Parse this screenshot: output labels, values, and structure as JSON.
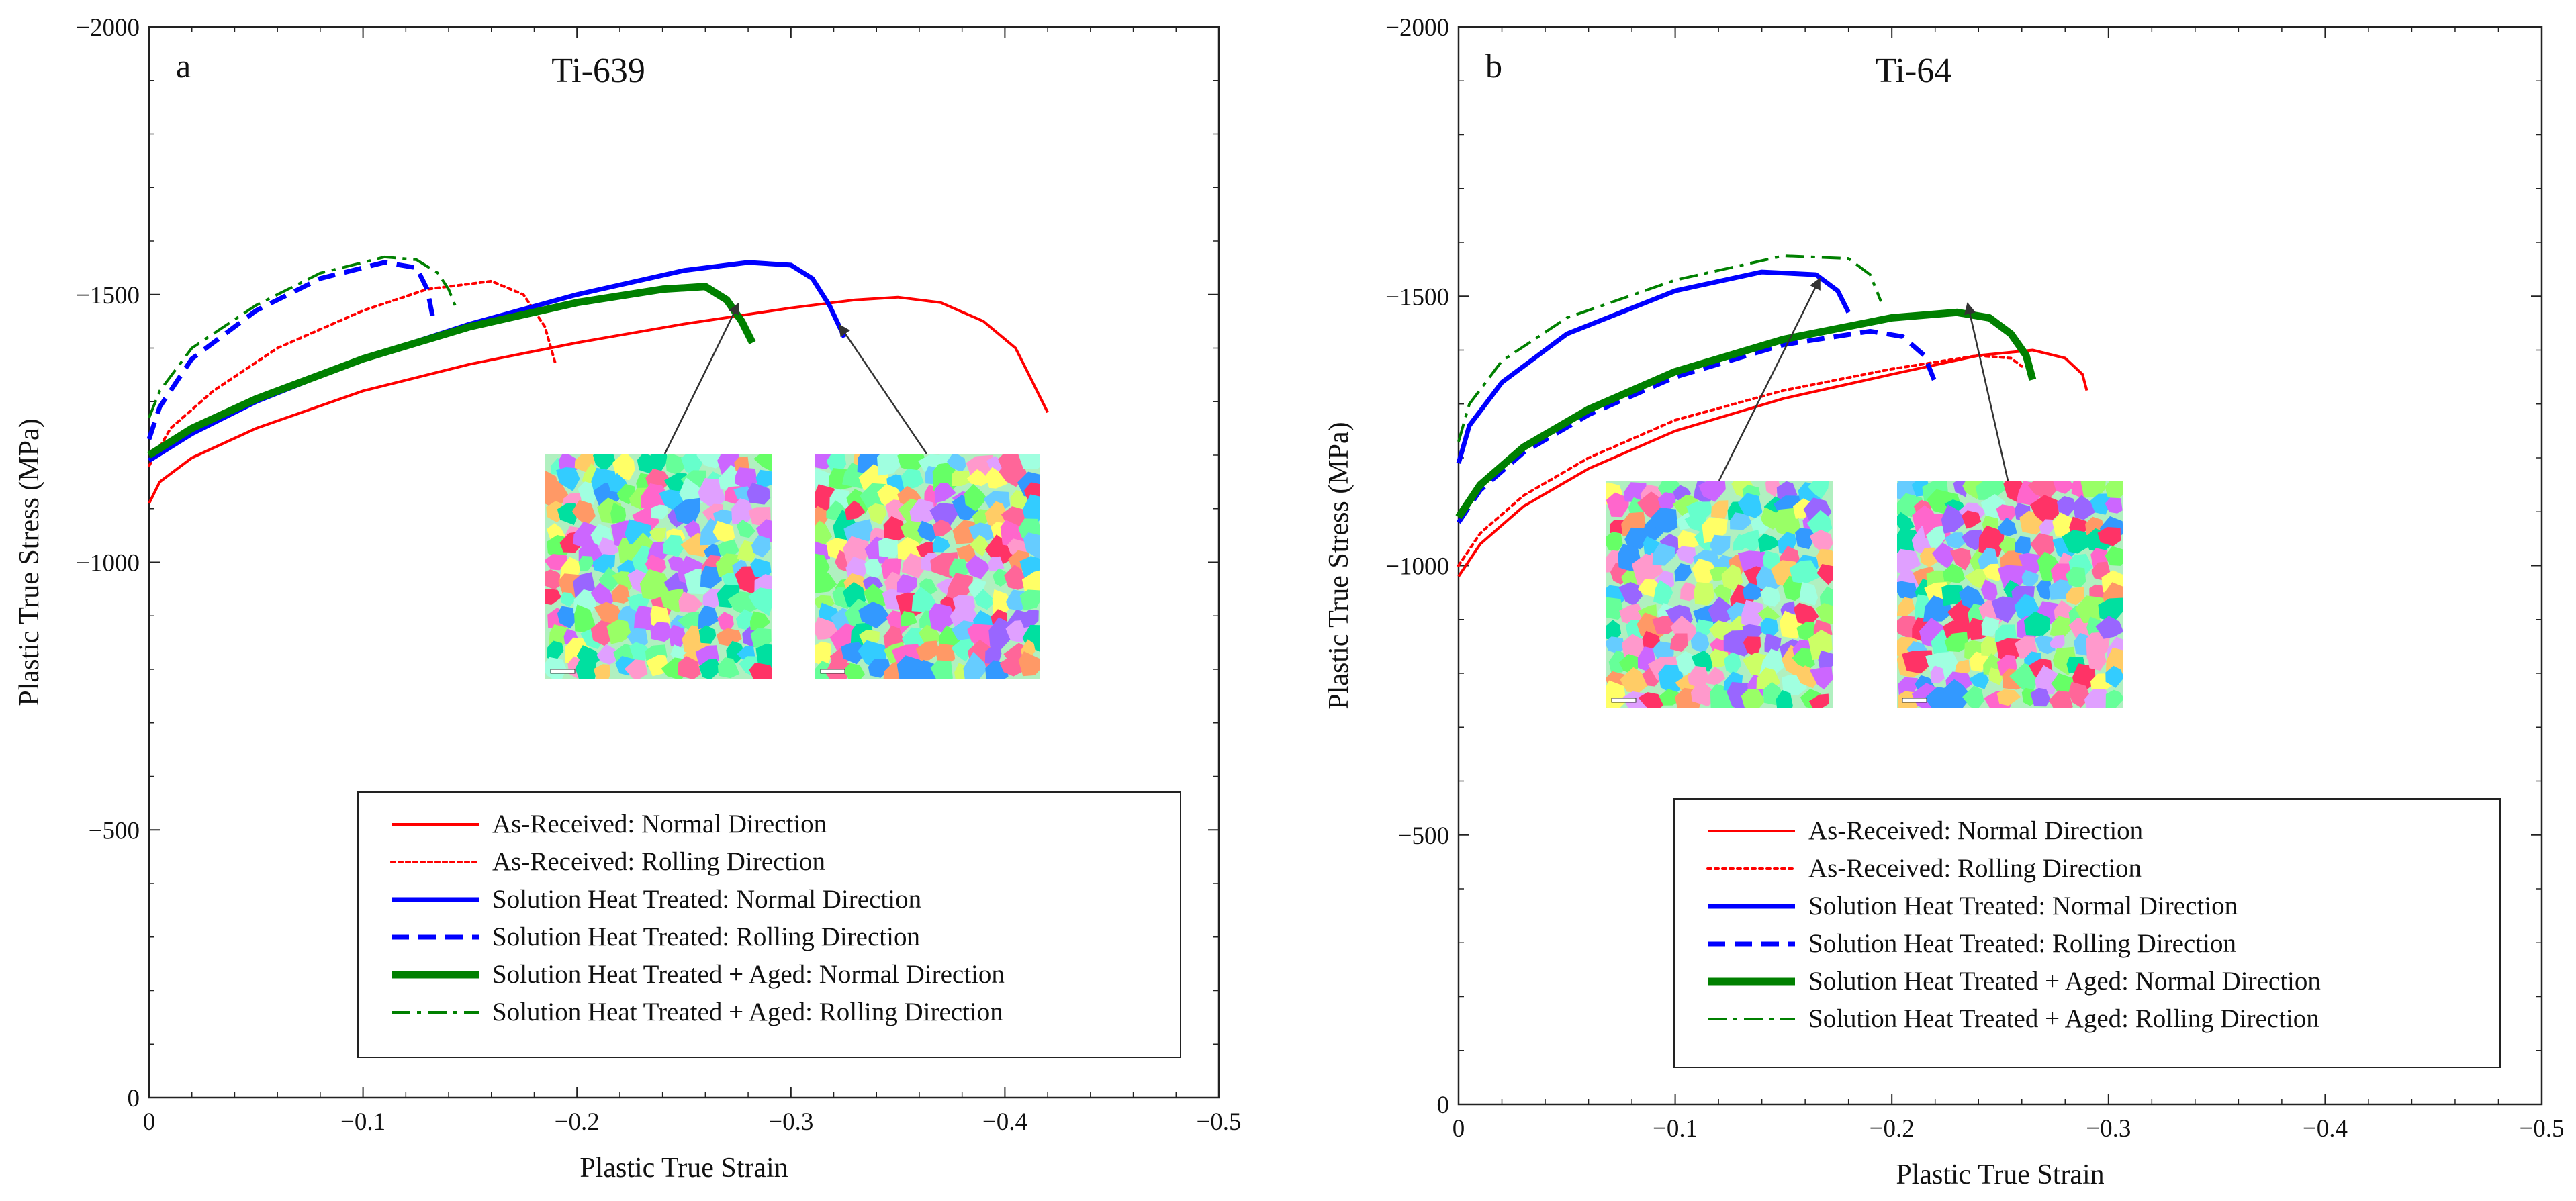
{
  "chart_data": [
    {
      "type": "line",
      "panel_label": "a",
      "title": "Ti-639",
      "xlabel": "Plastic True Strain",
      "ylabel": "Plastic True Stress (MPa)",
      "xlim": [
        0,
        -0.5
      ],
      "ylim": [
        0,
        -2000
      ],
      "x_ticks": [
        0,
        -0.1,
        -0.2,
        -0.3,
        -0.4,
        -0.5
      ],
      "x_tick_labels": [
        "0",
        "−0.1",
        "−0.2",
        "−0.3",
        "−0.4",
        "−0.5"
      ],
      "y_ticks": [
        0,
        -500,
        -1000,
        -1500,
        -2000
      ],
      "y_tick_labels": [
        "0",
        "−500",
        "−1000",
        "−1500",
        "−2000"
      ],
      "grid": false,
      "legend_position": "bottom-right",
      "series": [
        {
          "name": "As-Received: Normal Direction",
          "color": "#ff0000",
          "style": "solid",
          "width": "thin",
          "x": [
            0,
            -0.005,
            -0.02,
            -0.05,
            -0.1,
            -0.15,
            -0.2,
            -0.25,
            -0.3,
            -0.33,
            -0.35,
            -0.37,
            -0.39,
            -0.405,
            -0.41,
            -0.42
          ],
          "y": [
            -1110,
            -1150,
            -1195,
            -1250,
            -1320,
            -1370,
            -1410,
            -1445,
            -1475,
            -1490,
            -1495,
            -1485,
            -1450,
            -1400,
            -1360,
            -1280
          ]
        },
        {
          "name": "As-Received: Rolling Direction",
          "color": "#ff0000",
          "style": "dotted",
          "width": "thin",
          "x": [
            0,
            -0.01,
            -0.03,
            -0.06,
            -0.1,
            -0.13,
            -0.16,
            -0.175,
            -0.185,
            -0.19
          ],
          "y": [
            -1180,
            -1250,
            -1320,
            -1400,
            -1470,
            -1510,
            -1525,
            -1500,
            -1440,
            -1370
          ]
        },
        {
          "name": "Solution Heat Treated: Normal Direction",
          "color": "#0000ff",
          "style": "solid",
          "width": "medium",
          "x": [
            0,
            -0.02,
            -0.05,
            -0.1,
            -0.15,
            -0.2,
            -0.25,
            -0.28,
            -0.3,
            -0.31,
            -0.318,
            -0.325
          ],
          "y": [
            -1190,
            -1240,
            -1300,
            -1380,
            -1445,
            -1500,
            -1545,
            -1560,
            -1555,
            -1530,
            -1480,
            -1420
          ]
        },
        {
          "name": "Solution Heat Treated: Rolling Direction",
          "color": "#0000ff",
          "style": "dashed",
          "width": "medium",
          "x": [
            0,
            -0.005,
            -0.02,
            -0.05,
            -0.08,
            -0.11,
            -0.125,
            -0.13,
            -0.133
          ],
          "y": [
            -1230,
            -1290,
            -1380,
            -1470,
            -1530,
            -1560,
            -1550,
            -1510,
            -1450
          ]
        },
        {
          "name": "Solution Heat Treated + Aged: Normal Direction",
          "color": "#008000",
          "style": "solid",
          "width": "thick",
          "x": [
            0,
            -0.02,
            -0.05,
            -0.1,
            -0.15,
            -0.2,
            -0.24,
            -0.26,
            -0.27,
            -0.277,
            -0.282
          ],
          "y": [
            -1200,
            -1250,
            -1305,
            -1380,
            -1440,
            -1485,
            -1510,
            -1515,
            -1490,
            -1450,
            -1410
          ]
        },
        {
          "name": "Solution Heat Treated + Aged: Rolling Direction",
          "color": "#008000",
          "style": "dashdot",
          "width": "thin",
          "x": [
            0,
            -0.005,
            -0.02,
            -0.05,
            -0.08,
            -0.11,
            -0.125,
            -0.135,
            -0.14,
            -0.143
          ],
          "y": [
            -1270,
            -1320,
            -1400,
            -1480,
            -1540,
            -1570,
            -1565,
            -1540,
            -1510,
            -1480
          ]
        }
      ]
    },
    {
      "type": "line",
      "panel_label": "b",
      "title": "Ti-64",
      "xlabel": "Plastic True Strain",
      "ylabel": "Plastic True Stress (MPa)",
      "xlim": [
        0,
        -0.5
      ],
      "ylim": [
        0,
        -2000
      ],
      "x_ticks": [
        0,
        -0.1,
        -0.2,
        -0.3,
        -0.4,
        -0.5
      ],
      "x_tick_labels": [
        "0",
        "−0.1",
        "−0.2",
        "−0.3",
        "−0.4",
        "−0.5"
      ],
      "y_ticks": [
        0,
        -500,
        -1000,
        -1500,
        -2000
      ],
      "y_tick_labels": [
        "0",
        "−500",
        "−1000",
        "−1500",
        "−2000"
      ],
      "grid": false,
      "legend_position": "bottom-right",
      "series": [
        {
          "name": "As-Received: Normal Direction",
          "color": "#ff0000",
          "style": "solid",
          "width": "thin",
          "x": [
            0,
            -0.01,
            -0.03,
            -0.06,
            -0.1,
            -0.15,
            -0.2,
            -0.24,
            -0.265,
            -0.28,
            -0.288,
            -0.29
          ],
          "y": [
            -980,
            -1040,
            -1110,
            -1180,
            -1250,
            -1310,
            -1355,
            -1390,
            -1400,
            -1385,
            -1355,
            -1325
          ]
        },
        {
          "name": "As-Received: Rolling Direction",
          "color": "#ff0000",
          "style": "dotted",
          "width": "thin",
          "x": [
            0,
            -0.01,
            -0.03,
            -0.06,
            -0.1,
            -0.15,
            -0.2,
            -0.24,
            -0.255,
            -0.26
          ],
          "y": [
            -1000,
            -1060,
            -1130,
            -1200,
            -1270,
            -1325,
            -1365,
            -1390,
            -1385,
            -1370
          ]
        },
        {
          "name": "Solution Heat Treated: Normal Direction",
          "color": "#0000ff",
          "style": "solid",
          "width": "medium",
          "x": [
            0,
            -0.005,
            -0.02,
            -0.05,
            -0.1,
            -0.14,
            -0.165,
            -0.175,
            -0.18
          ],
          "y": [
            -1190,
            -1260,
            -1340,
            -1430,
            -1510,
            -1545,
            -1540,
            -1510,
            -1470
          ]
        },
        {
          "name": "Solution Heat Treated: Rolling Direction",
          "color": "#0000ff",
          "style": "dashed",
          "width": "medium",
          "x": [
            0,
            -0.01,
            -0.03,
            -0.06,
            -0.1,
            -0.15,
            -0.19,
            -0.205,
            -0.215,
            -0.22
          ],
          "y": [
            -1080,
            -1140,
            -1210,
            -1280,
            -1350,
            -1410,
            -1435,
            -1425,
            -1390,
            -1340
          ]
        },
        {
          "name": "Solution Heat Treated + Aged: Normal Direction",
          "color": "#008000",
          "style": "solid",
          "width": "thick",
          "x": [
            0,
            -0.01,
            -0.03,
            -0.06,
            -0.1,
            -0.15,
            -0.2,
            -0.23,
            -0.245,
            -0.255,
            -0.262,
            -0.265
          ],
          "y": [
            -1090,
            -1150,
            -1220,
            -1290,
            -1360,
            -1420,
            -1460,
            -1470,
            -1460,
            -1430,
            -1390,
            -1345
          ]
        },
        {
          "name": "Solution Heat Treated + Aged: Rolling Direction",
          "color": "#008000",
          "style": "dashdot",
          "width": "thin",
          "x": [
            0,
            -0.005,
            -0.02,
            -0.05,
            -0.1,
            -0.15,
            -0.18,
            -0.19,
            -0.195
          ],
          "y": [
            -1230,
            -1300,
            -1380,
            -1460,
            -1530,
            -1575,
            -1570,
            -1540,
            -1490
          ]
        }
      ]
    }
  ]
}
